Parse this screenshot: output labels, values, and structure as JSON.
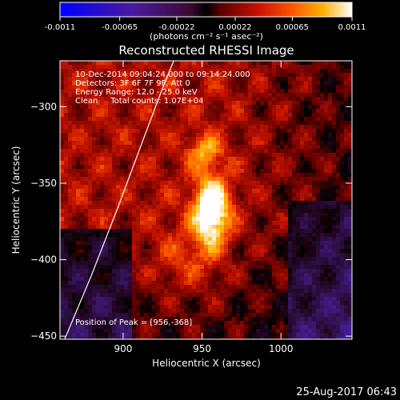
{
  "colorbar": {
    "ticks": [
      "-0.0011",
      "-0.00065",
      "-0.00022",
      "0.00022",
      "0.00065",
      "0.0011"
    ],
    "unit_label": "(photons cm⁻² s⁻¹ asec⁻²)",
    "range": [
      -0.0011,
      0.0011
    ]
  },
  "chart_data": {
    "type": "heatmap",
    "title": "Reconstructed RHESSI Image",
    "xlabel": "Heliocentric X (arcsec)",
    "ylabel": "Heliocentric Y (arcsec)",
    "xlim": [
      860,
      1045
    ],
    "ylim": [
      -452,
      -270
    ],
    "x_ticks": [
      {
        "value": 900,
        "label": "900"
      },
      {
        "value": 950,
        "label": "950"
      },
      {
        "value": 1000,
        "label": "1000"
      }
    ],
    "y_ticks": [
      {
        "value": -300,
        "label": "−300"
      },
      {
        "value": -350,
        "label": "−350"
      },
      {
        "value": -400,
        "label": "−400"
      },
      {
        "value": -450,
        "label": "−450"
      }
    ],
    "annotations": [
      "10-Dec-2014 09:04:24.000 to 09:14:24.000",
      "Detectors: 3F 6F 7F 9F, Att 0",
      "Energy Range: 12.0 - 25.0 keV",
      "Clean     Total counts: 1.07E+04"
    ],
    "peak": {
      "x": 956,
      "y": -368,
      "label": "Position of Peak = [956,-368]"
    },
    "limb_curve": [
      [
        863,
        -452
      ],
      [
        880,
        -410
      ],
      [
        897,
        -365
      ],
      [
        914,
        -318
      ],
      [
        925,
        -288
      ],
      [
        932,
        -270
      ]
    ]
  },
  "footer": {
    "timestamp": "25-Aug-2017 06:43"
  }
}
